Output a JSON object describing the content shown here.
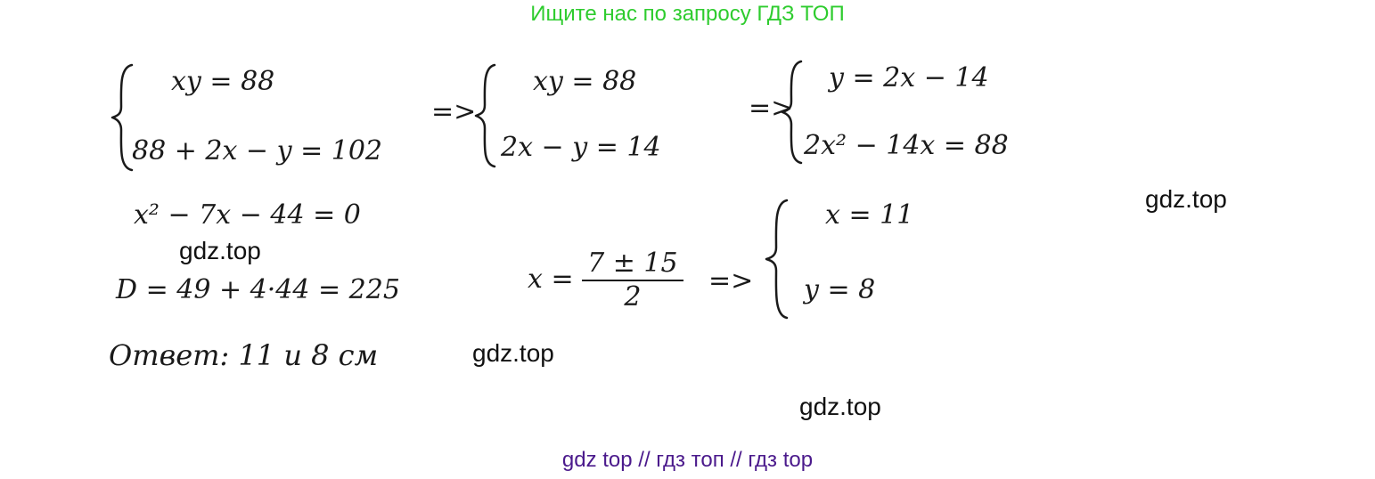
{
  "header": {
    "text": "Ищите нас по запросу ГДЗ ТОП",
    "color": "#2ecc2e"
  },
  "solution": {
    "system1": {
      "eq1": "xy =  88",
      "eq2": "88 + 2x − y = 102"
    },
    "arrow1": "=>",
    "system2": {
      "eq1": "xy = 88",
      "eq2": "2x − y = 14"
    },
    "arrow2": "=>",
    "system3": {
      "eq1": "y = 2x − 14",
      "eq2": "2x² − 14x = 88"
    },
    "quadratic": "x² − 7x − 44 = 0",
    "discriminant": "D = 49 + 4·44 = 225",
    "root_lhs": "x =",
    "root_num": "7 ± 15",
    "root_den": "2",
    "arrow3": "=>",
    "system4": {
      "eq1": "x = 11",
      "eq2": "y = 8"
    },
    "answer": "Ответ:  11 и 8 см"
  },
  "watermarks": [
    "gdz.top",
    "gdz.top",
    "gdz.top",
    "gdz.top"
  ],
  "footer": {
    "text": "gdz top  //  гдз топ  //  гдз top",
    "color": "#4b1a8c"
  }
}
